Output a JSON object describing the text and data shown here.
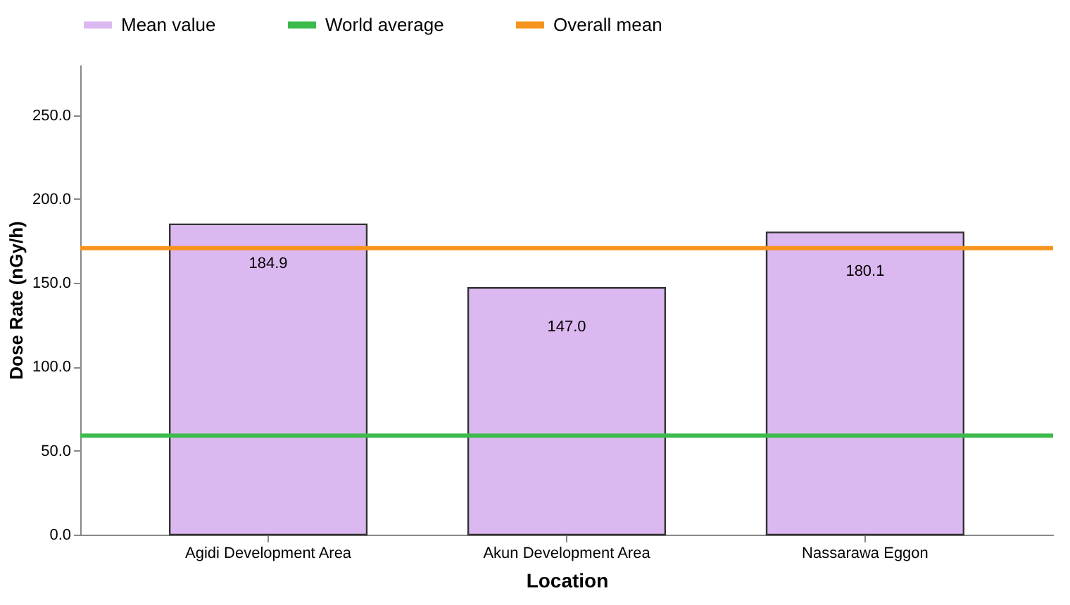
{
  "chart_data": {
    "type": "bar",
    "xlabel": "Location",
    "ylabel": "Dose Rate (nGy/h)",
    "categories": [
      "Agidi Development Area",
      "Akun Development Area",
      "Nassarawa Eggon"
    ],
    "series": [
      {
        "name": "Mean value",
        "color": "#dcb8f0",
        "values": [
          184.9,
          147.0,
          180.1
        ]
      }
    ],
    "value_labels": [
      "184.9",
      "147.0",
      "180.1"
    ],
    "ylim": [
      0,
      280
    ],
    "yticks": [
      {
        "value": 0,
        "label": "0.0"
      },
      {
        "value": 50,
        "label": "50.0"
      },
      {
        "value": 100,
        "label": "100.0"
      },
      {
        "value": 150,
        "label": "150.0"
      },
      {
        "value": 200,
        "label": "200.0"
      },
      {
        "value": 250,
        "label": "250.0"
      }
    ],
    "ref_lines": [
      {
        "axis": "y",
        "value": 59,
        "label": "World average",
        "color": "#3cba4c"
      },
      {
        "axis": "y",
        "value": 170.7,
        "label": "Overall mean",
        "color": "#f7941d"
      }
    ],
    "grid": false,
    "legend": "top"
  }
}
